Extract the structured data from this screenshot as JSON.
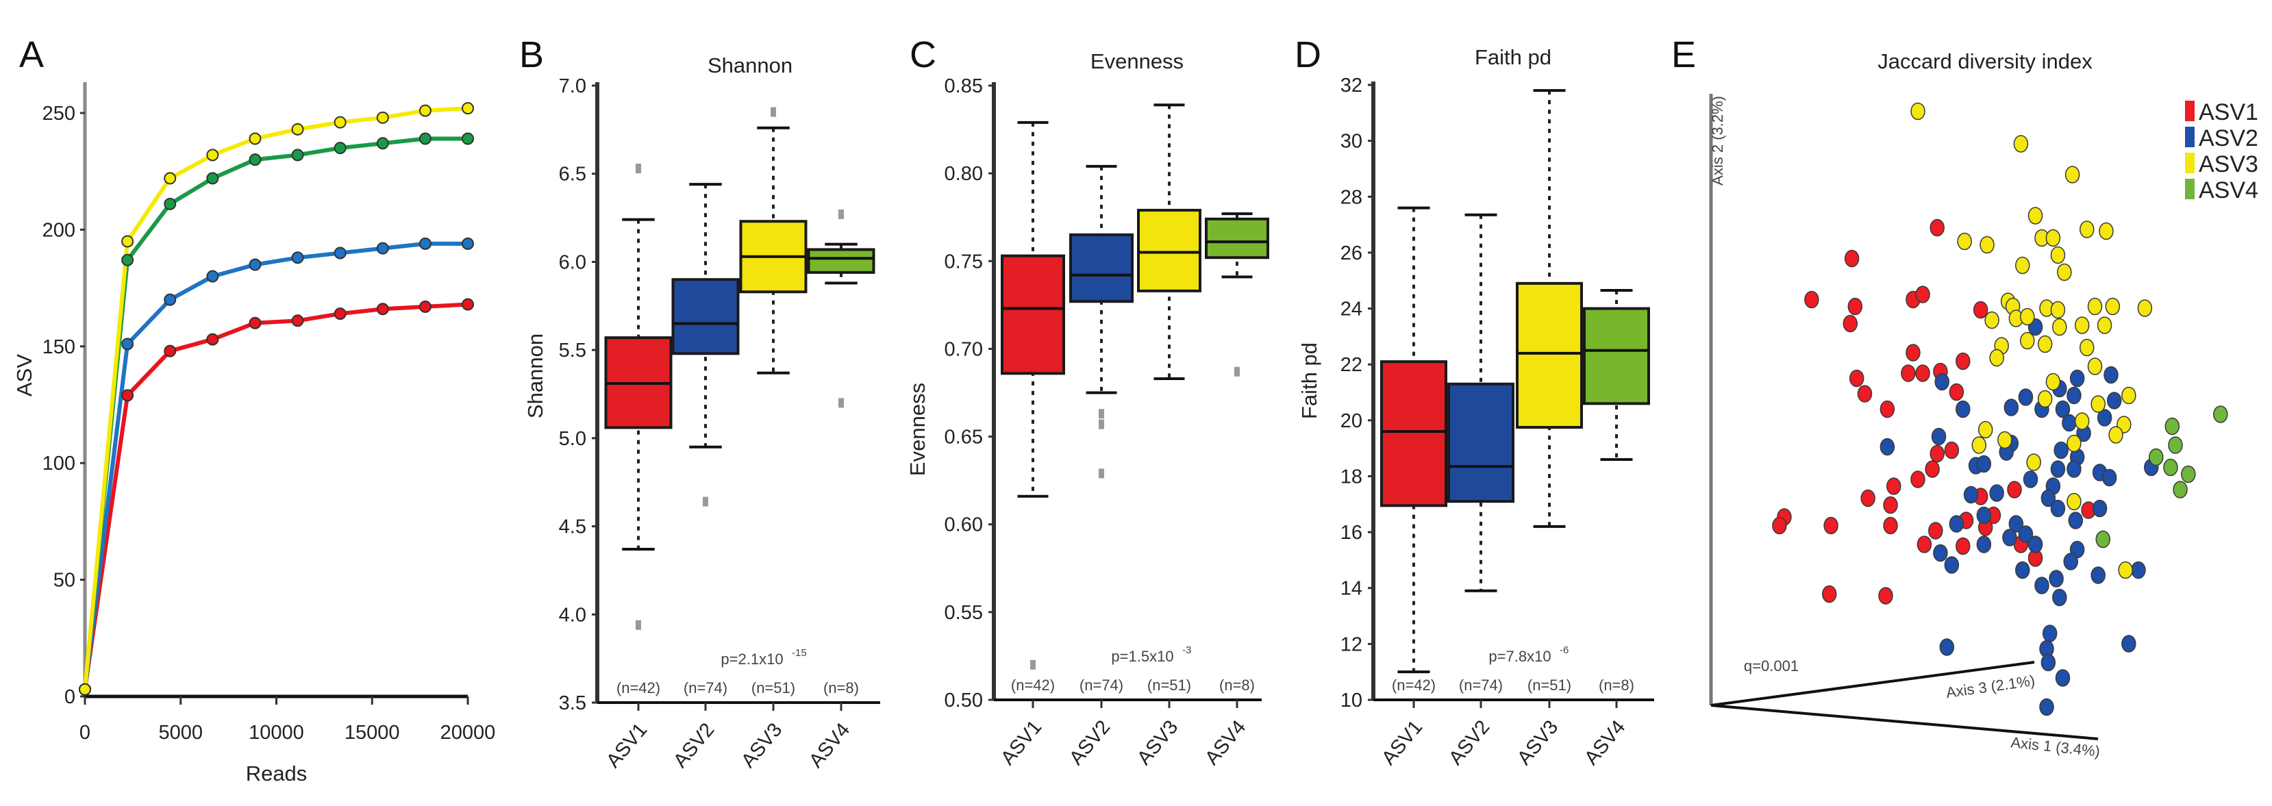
{
  "figure": {
    "panel_letters": [
      "A",
      "B",
      "C",
      "D",
      "E"
    ]
  },
  "chart_data": [
    {
      "panel": "A",
      "type": "line",
      "xlabel": "Reads",
      "ylabel": "ASV",
      "xlim": [
        0,
        20000
      ],
      "ylim": [
        0,
        250
      ],
      "xticks": [
        "0",
        "5000",
        "10000",
        "15000",
        "20000"
      ],
      "yticks": [
        "0",
        "50",
        "100",
        "150",
        "200",
        "250"
      ],
      "x": [
        0,
        2222,
        4444,
        6667,
        8889,
        11111,
        13333,
        15556,
        17778,
        20000
      ],
      "series": [
        {
          "color": "#e8141e",
          "values": [
            3,
            129,
            148,
            153,
            160,
            161,
            164,
            166,
            167,
            168
          ]
        },
        {
          "color": "#1f74c4",
          "values": [
            3,
            151,
            170,
            180,
            185,
            188,
            190,
            192,
            194,
            194
          ]
        },
        {
          "color": "#1a9a46",
          "values": [
            3,
            187,
            211,
            222,
            230,
            232,
            235,
            237,
            239,
            239
          ]
        },
        {
          "color": "#f5ea00",
          "values": [
            3,
            195,
            222,
            232,
            239,
            243,
            246,
            248,
            251,
            252
          ]
        }
      ]
    },
    {
      "panel": "B",
      "type": "box",
      "title": "Shannon",
      "ylabel": "Shannon",
      "ylim": [
        3.5,
        7.0
      ],
      "yticks": [
        "3.5",
        "4.0",
        "4.5",
        "5.0",
        "5.5",
        "6.0",
        "6.5",
        "7.0"
      ],
      "categories": [
        "ASV1",
        "ASV2",
        "ASV3",
        "ASV4"
      ],
      "n_labels": [
        "(n=42)",
        "(n=74)",
        "(n=51)",
        "(n=8)"
      ],
      "p_value": {
        "base": "p=2.1x10",
        "exponent": "-15"
      },
      "colors": [
        "#e31e24",
        "#1f4a9c",
        "#f2e40c",
        "#78b62c"
      ],
      "boxes": [
        {
          "whisker_low": 4.37,
          "q1": 5.06,
          "median": 5.31,
          "q3": 5.57,
          "whisker_high": 6.24,
          "outliers": [
            6.53,
            3.94
          ]
        },
        {
          "whisker_low": 4.95,
          "q1": 5.48,
          "median": 5.65,
          "q3": 5.9,
          "whisker_high": 6.44,
          "outliers": [
            4.64
          ]
        },
        {
          "whisker_low": 5.37,
          "q1": 5.83,
          "median": 6.03,
          "q3": 6.23,
          "whisker_high": 6.76,
          "outliers": [
            6.85
          ]
        },
        {
          "whisker_low": 5.88,
          "q1": 5.94,
          "median": 6.02,
          "q3": 6.07,
          "whisker_high": 6.1,
          "outliers": [
            6.27,
            5.2
          ]
        }
      ]
    },
    {
      "panel": "C",
      "type": "box",
      "title": "Evenness",
      "ylabel": "Evenness",
      "ylim": [
        0.5,
        0.85
      ],
      "yticks": [
        "0.50",
        "0.55",
        "0.60",
        "0.65",
        "0.70",
        "0.75",
        "0.80",
        "0.85"
      ],
      "categories": [
        "ASV1",
        "ASV2",
        "ASV3",
        "ASV4"
      ],
      "n_labels": [
        "(n=42)",
        "(n=74)",
        "(n=51)",
        "(n=8)"
      ],
      "p_value": {
        "base": "p=1.5x10",
        "exponent": "-3"
      },
      "colors": [
        "#e31e24",
        "#1f4a9c",
        "#f2e40c",
        "#78b62c"
      ],
      "boxes": [
        {
          "whisker_low": 0.616,
          "q1": 0.686,
          "median": 0.723,
          "q3": 0.753,
          "whisker_high": 0.829,
          "outliers": [
            0.52
          ]
        },
        {
          "whisker_low": 0.675,
          "q1": 0.727,
          "median": 0.742,
          "q3": 0.765,
          "whisker_high": 0.804,
          "outliers": [
            0.663,
            0.657,
            0.629
          ]
        },
        {
          "whisker_low": 0.683,
          "q1": 0.733,
          "median": 0.755,
          "q3": 0.779,
          "whisker_high": 0.839,
          "outliers": []
        },
        {
          "whisker_low": 0.741,
          "q1": 0.752,
          "median": 0.761,
          "q3": 0.774,
          "whisker_high": 0.777,
          "outliers": [
            0.687
          ]
        }
      ]
    },
    {
      "panel": "D",
      "type": "box",
      "title": "Faith pd",
      "ylabel": "Faith pd",
      "ylim": [
        10,
        32
      ],
      "yticks": [
        "10",
        "12",
        "14",
        "16",
        "18",
        "20",
        "22",
        "24",
        "26",
        "28",
        "30",
        "32"
      ],
      "categories": [
        "ASV1",
        "ASV2",
        "ASV3",
        "ASV4"
      ],
      "n_labels": [
        "(n=42)",
        "(n=74)",
        "(n=51)",
        "(n=8)"
      ],
      "p_value": {
        "base": "p=7.8x10",
        "exponent": "-6"
      },
      "colors": [
        "#e31e24",
        "#1f4a9c",
        "#f2e40c",
        "#78b62c"
      ],
      "boxes": [
        {
          "whisker_low": 11.0,
          "q1": 16.95,
          "median": 19.6,
          "q3": 22.1,
          "whisker_high": 27.6,
          "outliers": []
        },
        {
          "whisker_low": 13.9,
          "q1": 17.1,
          "median": 18.35,
          "q3": 21.3,
          "whisker_high": 27.35,
          "outliers": []
        },
        {
          "whisker_low": 16.2,
          "q1": 19.75,
          "median": 22.4,
          "q3": 24.9,
          "whisker_high": 31.8,
          "outliers": []
        },
        {
          "whisker_low": 18.6,
          "q1": 20.6,
          "median": 22.5,
          "q3": 24.0,
          "whisker_high": 24.65,
          "outliers": []
        }
      ]
    },
    {
      "panel": "E",
      "type": "scatter",
      "title": "Jaccard diversity index",
      "axis_labels": {
        "axis1": "Axis 1 (3.4%)",
        "axis2": "Axis 2 (3.2%)",
        "axis3": "Axis 3 (2.1%)"
      },
      "annotation": "q=0.001",
      "legend": {
        "position": "top-right"
      },
      "series": [
        {
          "name": "ASV1",
          "color": "#ee1c24",
          "points": [
            [
              0.12,
              1.15
            ],
            [
              -0.41,
              0.97
            ],
            [
              -0.66,
              0.73
            ],
            [
              -0.39,
              0.69
            ],
            [
              -0.42,
              0.59
            ],
            [
              -0.03,
              0.73
            ],
            [
              0.03,
              0.76
            ],
            [
              0.39,
              0.67
            ],
            [
              -0.03,
              0.42
            ],
            [
              0.28,
              0.37
            ],
            [
              -0.06,
              0.3
            ],
            [
              0.03,
              0.3
            ],
            [
              0.14,
              0.31
            ],
            [
              -0.38,
              0.27
            ],
            [
              -0.33,
              0.18
            ],
            [
              0.24,
              0.19
            ],
            [
              -0.19,
              0.09
            ],
            [
              0.21,
              -0.15
            ],
            [
              0.12,
              -0.17
            ],
            [
              0.09,
              -0.26
            ],
            [
              0.0,
              -0.32
            ],
            [
              -0.15,
              -0.36
            ],
            [
              -0.31,
              -0.43
            ],
            [
              -0.17,
              -0.47
            ],
            [
              0.6,
              -0.38
            ],
            [
              0.39,
              -0.42
            ],
            [
              -0.83,
              -0.54
            ],
            [
              -0.86,
              -0.59
            ],
            [
              -0.54,
              -0.59
            ],
            [
              -0.17,
              -0.59
            ],
            [
              0.11,
              -0.62
            ],
            [
              0.3,
              -0.56
            ],
            [
              0.47,
              -0.53
            ],
            [
              0.42,
              -0.6
            ],
            [
              0.04,
              -0.7
            ],
            [
              0.28,
              -0.71
            ],
            [
              0.64,
              -0.7
            ],
            [
              0.73,
              -0.78
            ],
            [
              1.06,
              -0.5
            ],
            [
              -0.55,
              -0.99
            ],
            [
              -0.2,
              -1.0
            ]
          ]
        },
        {
          "name": "ASV2",
          "color": "#1f4fa8",
          "points": [
            [
              0.73,
              0.57
            ],
            [
              1.2,
              0.29
            ],
            [
              0.99,
              0.27
            ],
            [
              0.88,
              0.21
            ],
            [
              0.97,
              0.17
            ],
            [
              0.67,
              0.16
            ],
            [
              0.58,
              0.1
            ],
            [
              0.77,
              0.09
            ],
            [
              0.9,
              0.09
            ],
            [
              1.22,
              0.14
            ],
            [
              1.16,
              0.04
            ],
            [
              0.94,
              0.01
            ],
            [
              1.03,
              -0.05
            ],
            [
              0.15,
              0.25
            ],
            [
              0.28,
              0.09
            ],
            [
              0.13,
              -0.07
            ],
            [
              -0.19,
              -0.13
            ],
            [
              0.58,
              -0.11
            ],
            [
              0.55,
              -0.16
            ],
            [
              0.89,
              -0.15
            ],
            [
              0.99,
              -0.19
            ],
            [
              0.87,
              -0.26
            ],
            [
              0.97,
              -0.26
            ],
            [
              0.36,
              -0.24
            ],
            [
              0.41,
              -0.23
            ],
            [
              1.13,
              -0.28
            ],
            [
              1.19,
              -0.31
            ],
            [
              0.7,
              -0.32
            ],
            [
              0.84,
              -0.36
            ],
            [
              1.45,
              -0.25
            ],
            [
              0.33,
              -0.41
            ],
            [
              0.49,
              -0.4
            ],
            [
              0.81,
              -0.43
            ],
            [
              0.87,
              -0.49
            ],
            [
              1.13,
              -0.49
            ],
            [
              0.98,
              -0.56
            ],
            [
              0.24,
              -0.58
            ],
            [
              0.41,
              -0.53
            ],
            [
              0.61,
              -0.58
            ],
            [
              0.57,
              -0.66
            ],
            [
              0.67,
              -0.64
            ],
            [
              0.73,
              -0.7
            ],
            [
              0.41,
              -0.7
            ],
            [
              0.14,
              -0.75
            ],
            [
              0.21,
              -0.82
            ],
            [
              0.99,
              -0.73
            ],
            [
              0.95,
              -0.8
            ],
            [
              0.65,
              -0.85
            ],
            [
              0.86,
              -0.9
            ],
            [
              0.77,
              -0.94
            ],
            [
              1.12,
              -0.88
            ],
            [
              1.37,
              -0.85
            ],
            [
              0.88,
              -1.01
            ],
            [
              0.18,
              -1.3
            ],
            [
              0.82,
              -1.22
            ],
            [
              0.8,
              -1.31
            ],
            [
              0.81,
              -1.39
            ],
            [
              0.9,
              -1.48
            ],
            [
              0.8,
              -1.65
            ],
            [
              1.31,
              -1.28
            ]
          ]
        },
        {
          "name": "ASV3",
          "color": "#f5e60e",
          "points": [
            [
              0.0,
              1.83
            ],
            [
              0.64,
              1.64
            ],
            [
              0.96,
              1.46
            ],
            [
              0.73,
              1.22
            ],
            [
              1.05,
              1.14
            ],
            [
              1.17,
              1.13
            ],
            [
              0.77,
              1.09
            ],
            [
              0.84,
              1.09
            ],
            [
              0.29,
              1.07
            ],
            [
              0.43,
              1.05
            ],
            [
              0.87,
              0.99
            ],
            [
              0.65,
              0.93
            ],
            [
              0.91,
              0.89
            ],
            [
              0.56,
              0.72
            ],
            [
              0.59,
              0.69
            ],
            [
              0.8,
              0.68
            ],
            [
              0.87,
              0.67
            ],
            [
              1.1,
              0.69
            ],
            [
              1.21,
              0.69
            ],
            [
              1.41,
              0.68
            ],
            [
              0.46,
              0.61
            ],
            [
              0.61,
              0.62
            ],
            [
              0.68,
              0.63
            ],
            [
              0.88,
              0.57
            ],
            [
              1.02,
              0.58
            ],
            [
              1.16,
              0.58
            ],
            [
              0.68,
              0.49
            ],
            [
              0.79,
              0.47
            ],
            [
              1.05,
              0.45
            ],
            [
              0.52,
              0.46
            ],
            [
              0.49,
              0.39
            ],
            [
              1.1,
              0.34
            ],
            [
              0.84,
              0.25
            ],
            [
              0.79,
              0.15
            ],
            [
              1.12,
              0.12
            ],
            [
              1.31,
              0.17
            ],
            [
              1.02,
              0.02
            ],
            [
              1.28,
              0.0
            ],
            [
              1.23,
              -0.06
            ],
            [
              0.42,
              -0.03
            ],
            [
              0.38,
              -0.12
            ],
            [
              0.54,
              -0.09
            ],
            [
              0.97,
              -0.11
            ],
            [
              0.72,
              -0.22
            ],
            [
              0.97,
              -0.45
            ],
            [
              1.29,
              -0.85
            ]
          ]
        },
        {
          "name": "ASV4",
          "color": "#6fb63a",
          "points": [
            [
              1.88,
              0.06
            ],
            [
              1.58,
              -0.01
            ],
            [
              1.6,
              -0.12
            ],
            [
              1.48,
              -0.19
            ],
            [
              1.57,
              -0.25
            ],
            [
              1.68,
              -0.29
            ],
            [
              1.63,
              -0.38
            ],
            [
              1.15,
              -0.67
            ]
          ]
        }
      ]
    }
  ]
}
